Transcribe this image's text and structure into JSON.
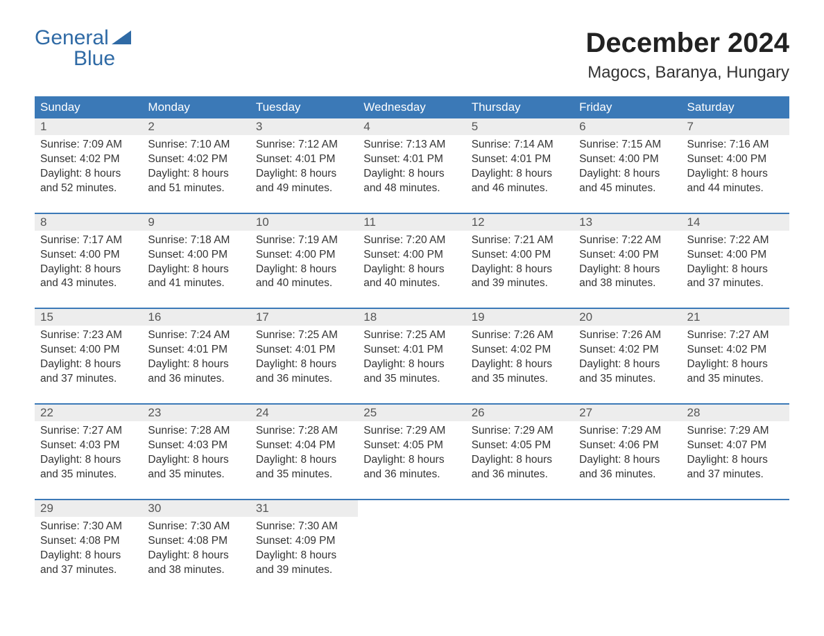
{
  "logo": {
    "line1": "General",
    "line2": "Blue",
    "text_color": "#2f6aa5",
    "flag_color": "#2f6aa5"
  },
  "header": {
    "title": "December 2024",
    "subtitle": "Magocs, Baranya, Hungary",
    "title_fontsize": 40,
    "subtitle_fontsize": 24,
    "title_color": "#222222",
    "subtitle_color": "#333333"
  },
  "calendar": {
    "type": "table",
    "background_color": "#ffffff",
    "header_bg": "#3b79b7",
    "header_text_color": "#ffffff",
    "daynum_bg": "#ededed",
    "daynum_color": "#555555",
    "week_border_color": "#3b79b7",
    "cell_text_color": "#333333",
    "cell_fontsize": 15.5,
    "header_fontsize": 17,
    "columns": [
      "Sunday",
      "Monday",
      "Tuesday",
      "Wednesday",
      "Thursday",
      "Friday",
      "Saturday"
    ],
    "weeks": [
      [
        {
          "day": "1",
          "sunrise": "Sunrise: 7:09 AM",
          "sunset": "Sunset: 4:02 PM",
          "dl1": "Daylight: 8 hours",
          "dl2": "and 52 minutes."
        },
        {
          "day": "2",
          "sunrise": "Sunrise: 7:10 AM",
          "sunset": "Sunset: 4:02 PM",
          "dl1": "Daylight: 8 hours",
          "dl2": "and 51 minutes."
        },
        {
          "day": "3",
          "sunrise": "Sunrise: 7:12 AM",
          "sunset": "Sunset: 4:01 PM",
          "dl1": "Daylight: 8 hours",
          "dl2": "and 49 minutes."
        },
        {
          "day": "4",
          "sunrise": "Sunrise: 7:13 AM",
          "sunset": "Sunset: 4:01 PM",
          "dl1": "Daylight: 8 hours",
          "dl2": "and 48 minutes."
        },
        {
          "day": "5",
          "sunrise": "Sunrise: 7:14 AM",
          "sunset": "Sunset: 4:01 PM",
          "dl1": "Daylight: 8 hours",
          "dl2": "and 46 minutes."
        },
        {
          "day": "6",
          "sunrise": "Sunrise: 7:15 AM",
          "sunset": "Sunset: 4:00 PM",
          "dl1": "Daylight: 8 hours",
          "dl2": "and 45 minutes."
        },
        {
          "day": "7",
          "sunrise": "Sunrise: 7:16 AM",
          "sunset": "Sunset: 4:00 PM",
          "dl1": "Daylight: 8 hours",
          "dl2": "and 44 minutes."
        }
      ],
      [
        {
          "day": "8",
          "sunrise": "Sunrise: 7:17 AM",
          "sunset": "Sunset: 4:00 PM",
          "dl1": "Daylight: 8 hours",
          "dl2": "and 43 minutes."
        },
        {
          "day": "9",
          "sunrise": "Sunrise: 7:18 AM",
          "sunset": "Sunset: 4:00 PM",
          "dl1": "Daylight: 8 hours",
          "dl2": "and 41 minutes."
        },
        {
          "day": "10",
          "sunrise": "Sunrise: 7:19 AM",
          "sunset": "Sunset: 4:00 PM",
          "dl1": "Daylight: 8 hours",
          "dl2": "and 40 minutes."
        },
        {
          "day": "11",
          "sunrise": "Sunrise: 7:20 AM",
          "sunset": "Sunset: 4:00 PM",
          "dl1": "Daylight: 8 hours",
          "dl2": "and 40 minutes."
        },
        {
          "day": "12",
          "sunrise": "Sunrise: 7:21 AM",
          "sunset": "Sunset: 4:00 PM",
          "dl1": "Daylight: 8 hours",
          "dl2": "and 39 minutes."
        },
        {
          "day": "13",
          "sunrise": "Sunrise: 7:22 AM",
          "sunset": "Sunset: 4:00 PM",
          "dl1": "Daylight: 8 hours",
          "dl2": "and 38 minutes."
        },
        {
          "day": "14",
          "sunrise": "Sunrise: 7:22 AM",
          "sunset": "Sunset: 4:00 PM",
          "dl1": "Daylight: 8 hours",
          "dl2": "and 37 minutes."
        }
      ],
      [
        {
          "day": "15",
          "sunrise": "Sunrise: 7:23 AM",
          "sunset": "Sunset: 4:00 PM",
          "dl1": "Daylight: 8 hours",
          "dl2": "and 37 minutes."
        },
        {
          "day": "16",
          "sunrise": "Sunrise: 7:24 AM",
          "sunset": "Sunset: 4:01 PM",
          "dl1": "Daylight: 8 hours",
          "dl2": "and 36 minutes."
        },
        {
          "day": "17",
          "sunrise": "Sunrise: 7:25 AM",
          "sunset": "Sunset: 4:01 PM",
          "dl1": "Daylight: 8 hours",
          "dl2": "and 36 minutes."
        },
        {
          "day": "18",
          "sunrise": "Sunrise: 7:25 AM",
          "sunset": "Sunset: 4:01 PM",
          "dl1": "Daylight: 8 hours",
          "dl2": "and 35 minutes."
        },
        {
          "day": "19",
          "sunrise": "Sunrise: 7:26 AM",
          "sunset": "Sunset: 4:02 PM",
          "dl1": "Daylight: 8 hours",
          "dl2": "and 35 minutes."
        },
        {
          "day": "20",
          "sunrise": "Sunrise: 7:26 AM",
          "sunset": "Sunset: 4:02 PM",
          "dl1": "Daylight: 8 hours",
          "dl2": "and 35 minutes."
        },
        {
          "day": "21",
          "sunrise": "Sunrise: 7:27 AM",
          "sunset": "Sunset: 4:02 PM",
          "dl1": "Daylight: 8 hours",
          "dl2": "and 35 minutes."
        }
      ],
      [
        {
          "day": "22",
          "sunrise": "Sunrise: 7:27 AM",
          "sunset": "Sunset: 4:03 PM",
          "dl1": "Daylight: 8 hours",
          "dl2": "and 35 minutes."
        },
        {
          "day": "23",
          "sunrise": "Sunrise: 7:28 AM",
          "sunset": "Sunset: 4:03 PM",
          "dl1": "Daylight: 8 hours",
          "dl2": "and 35 minutes."
        },
        {
          "day": "24",
          "sunrise": "Sunrise: 7:28 AM",
          "sunset": "Sunset: 4:04 PM",
          "dl1": "Daylight: 8 hours",
          "dl2": "and 35 minutes."
        },
        {
          "day": "25",
          "sunrise": "Sunrise: 7:29 AM",
          "sunset": "Sunset: 4:05 PM",
          "dl1": "Daylight: 8 hours",
          "dl2": "and 36 minutes."
        },
        {
          "day": "26",
          "sunrise": "Sunrise: 7:29 AM",
          "sunset": "Sunset: 4:05 PM",
          "dl1": "Daylight: 8 hours",
          "dl2": "and 36 minutes."
        },
        {
          "day": "27",
          "sunrise": "Sunrise: 7:29 AM",
          "sunset": "Sunset: 4:06 PM",
          "dl1": "Daylight: 8 hours",
          "dl2": "and 36 minutes."
        },
        {
          "day": "28",
          "sunrise": "Sunrise: 7:29 AM",
          "sunset": "Sunset: 4:07 PM",
          "dl1": "Daylight: 8 hours",
          "dl2": "and 37 minutes."
        }
      ],
      [
        {
          "day": "29",
          "sunrise": "Sunrise: 7:30 AM",
          "sunset": "Sunset: 4:08 PM",
          "dl1": "Daylight: 8 hours",
          "dl2": "and 37 minutes."
        },
        {
          "day": "30",
          "sunrise": "Sunrise: 7:30 AM",
          "sunset": "Sunset: 4:08 PM",
          "dl1": "Daylight: 8 hours",
          "dl2": "and 38 minutes."
        },
        {
          "day": "31",
          "sunrise": "Sunrise: 7:30 AM",
          "sunset": "Sunset: 4:09 PM",
          "dl1": "Daylight: 8 hours",
          "dl2": "and 39 minutes."
        },
        {
          "empty": true
        },
        {
          "empty": true
        },
        {
          "empty": true
        },
        {
          "empty": true
        }
      ]
    ]
  }
}
